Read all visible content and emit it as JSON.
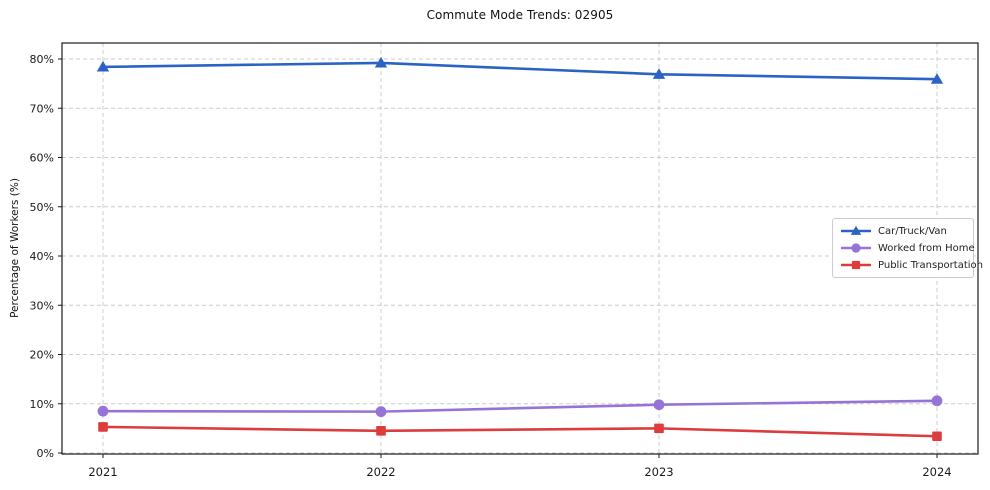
{
  "figure": {
    "background": "#ffffff"
  },
  "chart_data": {
    "type": "line",
    "title": "Commute Mode Trends: 02905",
    "xlabel": "",
    "ylabel": "Percentage of Workers (%)",
    "categories": [
      "2021",
      "2022",
      "2023",
      "2024"
    ],
    "series": [
      {
        "name": "Car/Truck/Van",
        "color": "#2b63c5",
        "marker": "triangle",
        "values": [
          78.4,
          79.2,
          76.9,
          75.9
        ]
      },
      {
        "name": "Worked from Home",
        "color": "#9673d6",
        "marker": "circle",
        "values": [
          8.5,
          8.4,
          9.8,
          10.6
        ]
      },
      {
        "name": "Public Transportation",
        "color": "#dc3c3c",
        "marker": "square",
        "values": [
          5.3,
          4.5,
          5.0,
          3.4
        ]
      }
    ],
    "yticks": [
      0,
      10,
      20,
      30,
      40,
      50,
      60,
      70,
      80
    ],
    "ytick_suffix": "%",
    "ylim": [
      0,
      83
    ],
    "grid": true,
    "grid_style": "dashed",
    "legend_position": "center-right",
    "style": {
      "grid_color": "#cccccc",
      "axis_color": "#1a1a1a",
      "text_color": "#1a1a1a"
    }
  }
}
